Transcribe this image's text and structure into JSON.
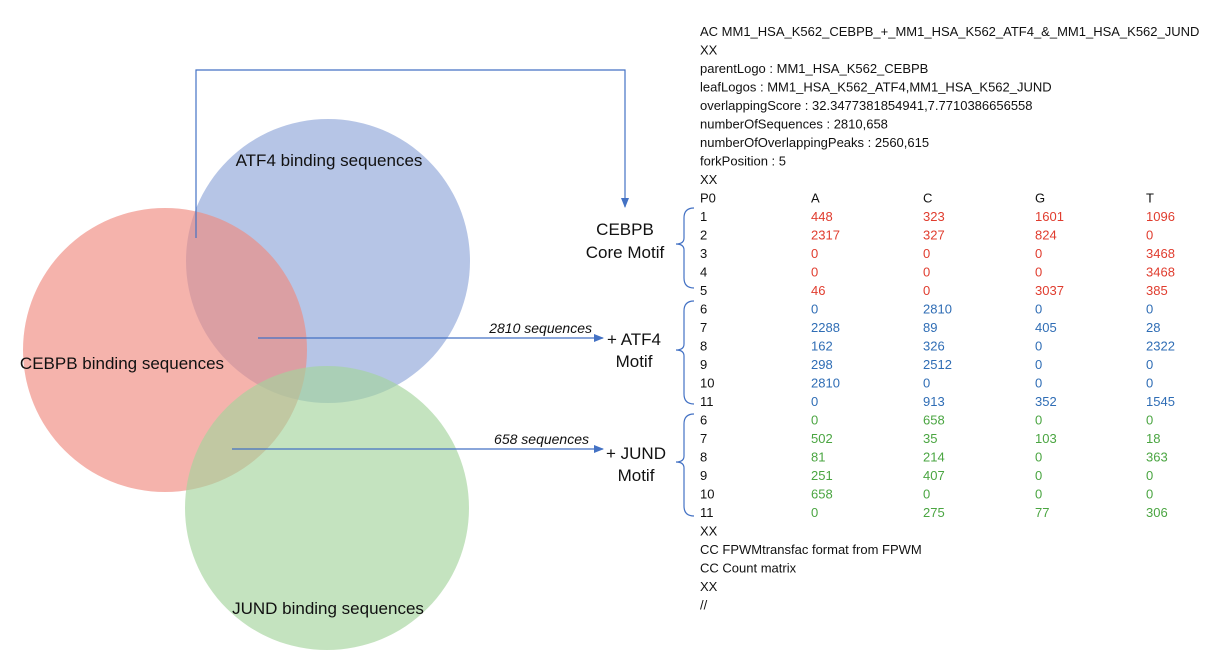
{
  "colors": {
    "cebpb": "#f08a80",
    "atf4": "#8fa6d8",
    "jund": "#a4d49d",
    "core_text": "#e03c2e",
    "atf4_text": "#2f6db5",
    "jund_text": "#4aa541",
    "arrow": "#4472c4",
    "bracket": "#4472c4"
  },
  "venn": {
    "cebpb_label": "CEBPB binding sequences",
    "atf4_label": "ATF4 binding sequences",
    "jund_label": "JUND binding sequences"
  },
  "arrows": {
    "atf4_count": "2810 sequences",
    "jund_count": "658 sequences"
  },
  "motifs": {
    "core": [
      "CEBPB",
      "Core Motif"
    ],
    "atf4": [
      "+ ATF4",
      "Motif"
    ],
    "jund": [
      "+ JUND",
      "Motif"
    ]
  },
  "header_lines": [
    "AC MM1_HSA_K562_CEBPB_+_MM1_HSA_K562_ATF4_&_MM1_HSA_K562_JUND",
    "XX",
    "parentLogo : MM1_HSA_K562_CEBPB",
    "leafLogos : MM1_HSA_K562_ATF4,MM1_HSA_K562_JUND",
    "overlappingScore : 32.3477381854941,7.7710386656558",
    "numberOfSequences : 2810,658",
    "numberOfOverlappingPeaks : 2560,615",
    "forkPosition : 5",
    "XX"
  ],
  "matrix_header": [
    "P0",
    "A",
    "C",
    "G",
    "T"
  ],
  "matrix_groups": [
    {
      "group": "core",
      "rows": [
        {
          "pos": "1",
          "vals": [
            "448",
            "323",
            "1601",
            "1096"
          ]
        },
        {
          "pos": "2",
          "vals": [
            "2317",
            "327",
            "824",
            "0"
          ]
        },
        {
          "pos": "3",
          "vals": [
            "0",
            "0",
            "0",
            "3468"
          ]
        },
        {
          "pos": "4",
          "vals": [
            "0",
            "0",
            "0",
            "3468"
          ]
        },
        {
          "pos": "5",
          "vals": [
            "46",
            "0",
            "3037",
            "385"
          ]
        }
      ]
    },
    {
      "group": "atf4",
      "rows": [
        {
          "pos": "6",
          "vals": [
            "0",
            "2810",
            "0",
            "0"
          ]
        },
        {
          "pos": "7",
          "vals": [
            "2288",
            "89",
            "405",
            "28"
          ]
        },
        {
          "pos": "8",
          "vals": [
            "162",
            "326",
            "0",
            "2322"
          ]
        },
        {
          "pos": "9",
          "vals": [
            "298",
            "2512",
            "0",
            "0"
          ]
        },
        {
          "pos": "10",
          "vals": [
            "2810",
            "0",
            "0",
            "0"
          ]
        },
        {
          "pos": "11",
          "vals": [
            "0",
            "913",
            "352",
            "1545"
          ]
        }
      ]
    },
    {
      "group": "jund",
      "rows": [
        {
          "pos": "6",
          "vals": [
            "0",
            "658",
            "0",
            "0"
          ]
        },
        {
          "pos": "7",
          "vals": [
            "502",
            "35",
            "103",
            "18"
          ]
        },
        {
          "pos": "8",
          "vals": [
            "81",
            "214",
            "0",
            "363"
          ]
        },
        {
          "pos": "9",
          "vals": [
            "251",
            "407",
            "0",
            "0"
          ]
        },
        {
          "pos": "10",
          "vals": [
            "658",
            "0",
            "0",
            "0"
          ]
        },
        {
          "pos": "11",
          "vals": [
            "0",
            "275",
            "77",
            "306"
          ]
        }
      ]
    }
  ],
  "footer_lines": [
    "XX",
    "CC FPWMtransfac format from FPWM",
    "CC Count matrix",
    "XX",
    "//"
  ]
}
